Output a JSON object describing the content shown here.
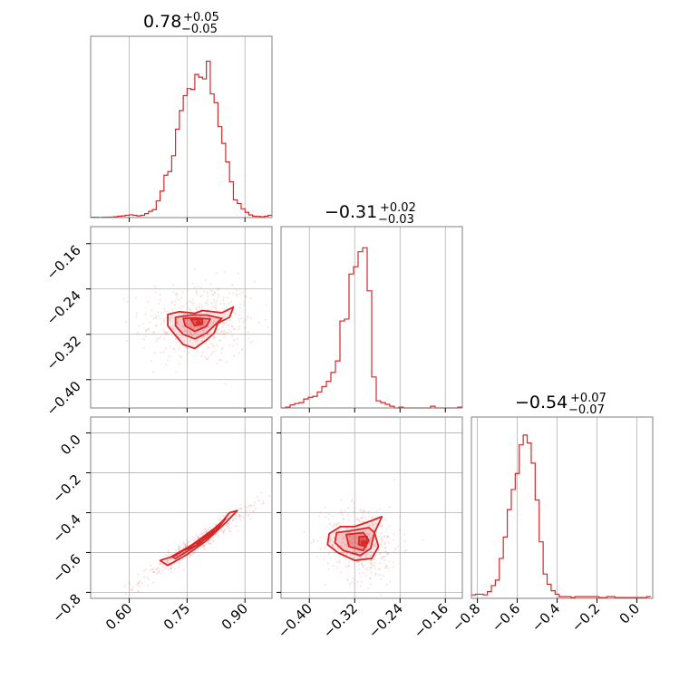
{
  "chart_data": {
    "type": "corner",
    "color": "#d62728",
    "grid": true,
    "titles": [
      {
        "main": "0.78",
        "plus": "+0.05",
        "minus": "−0.05"
      },
      {
        "main": "−0.31",
        "plus": "+0.02",
        "minus": "−0.03"
      },
      {
        "main": "−0.54",
        "plus": "+0.07",
        "minus": "−0.07"
      }
    ],
    "parameters": [
      {
        "range": [
          0.5,
          0.97
        ],
        "ticks": [
          0.6,
          0.75,
          0.9
        ],
        "tick_labels": [
          "0.60",
          "0.75",
          "0.90"
        ]
      },
      {
        "range": [
          -0.45,
          -0.13
        ],
        "ticks": [
          -0.4,
          -0.32,
          -0.24,
          -0.16
        ],
        "tick_labels": [
          "−0.40",
          "−0.32",
          "−0.24",
          "−0.16"
        ]
      },
      {
        "range": [
          -0.83,
          0.08
        ],
        "ticks": [
          -0.8,
          -0.6,
          -0.4,
          -0.2,
          0.0
        ],
        "tick_labels": [
          "−0.8",
          "−0.6",
          "−0.4",
          "−0.2",
          "0.0"
        ]
      }
    ],
    "histograms": [
      {
        "bin_width": 0.01,
        "bins": [
          [
            0.5,
            0.002
          ],
          [
            0.51,
            0.002
          ],
          [
            0.52,
            0.001
          ],
          [
            0.53,
            0.002
          ],
          [
            0.54,
            0.003
          ],
          [
            0.55,
            0.003
          ],
          [
            0.56,
            0.005
          ],
          [
            0.57,
            0.008
          ],
          [
            0.58,
            0.01
          ],
          [
            0.59,
            0.013
          ],
          [
            0.6,
            0.016
          ],
          [
            0.61,
            0.013
          ],
          [
            0.62,
            0.01
          ],
          [
            0.63,
            0.013
          ],
          [
            0.64,
            0.023
          ],
          [
            0.65,
            0.036
          ],
          [
            0.66,
            0.046
          ],
          [
            0.67,
            0.097
          ],
          [
            0.68,
            0.154
          ],
          [
            0.69,
            0.246
          ],
          [
            0.7,
            0.267
          ],
          [
            0.71,
            0.359
          ],
          [
            0.72,
            0.513
          ],
          [
            0.73,
            0.621
          ],
          [
            0.74,
            0.708
          ],
          [
            0.75,
            0.749
          ],
          [
            0.76,
            0.744
          ],
          [
            0.77,
            0.831
          ],
          [
            0.78,
            0.815
          ],
          [
            0.79,
            0.805
          ],
          [
            0.8,
            0.908
          ],
          [
            0.81,
            0.718
          ],
          [
            0.82,
            0.667
          ],
          [
            0.83,
            0.528
          ],
          [
            0.84,
            0.431
          ],
          [
            0.85,
            0.323
          ],
          [
            0.86,
            0.208
          ],
          [
            0.87,
            0.103
          ],
          [
            0.88,
            0.082
          ],
          [
            0.89,
            0.051
          ],
          [
            0.9,
            0.031
          ],
          [
            0.91,
            0.015
          ],
          [
            0.92,
            0.008
          ],
          [
            0.93,
            0.007
          ],
          [
            0.94,
            0.005
          ],
          [
            0.95,
            0.008
          ],
          [
            0.96,
            0.013
          ]
        ]
      },
      {
        "bin_width": 0.008,
        "bins": [
          [
            -0.45,
            0.0
          ],
          [
            -0.442,
            0.005
          ],
          [
            -0.434,
            0.018
          ],
          [
            -0.426,
            0.026
          ],
          [
            -0.418,
            0.031
          ],
          [
            -0.41,
            0.052
          ],
          [
            -0.402,
            0.062
          ],
          [
            -0.394,
            0.067
          ],
          [
            -0.386,
            0.093
          ],
          [
            -0.378,
            0.124
          ],
          [
            -0.37,
            0.155
          ],
          [
            -0.362,
            0.206
          ],
          [
            -0.354,
            0.273
          ],
          [
            -0.346,
            0.505
          ],
          [
            -0.338,
            0.516
          ],
          [
            -0.33,
            0.778
          ],
          [
            -0.322,
            0.82
          ],
          [
            -0.314,
            0.907
          ],
          [
            -0.306,
            0.93
          ],
          [
            -0.298,
            0.68
          ],
          [
            -0.29,
            0.18
          ],
          [
            -0.282,
            0.041
          ],
          [
            -0.274,
            0.031
          ],
          [
            -0.266,
            0.021
          ],
          [
            -0.258,
            0.01
          ],
          [
            -0.25,
            0.0
          ],
          [
            -0.242,
            0.005
          ],
          [
            -0.234,
            0.0
          ],
          [
            -0.226,
            0.0
          ],
          [
            -0.218,
            0.0
          ],
          [
            -0.21,
            0.0
          ],
          [
            -0.202,
            0.0
          ],
          [
            -0.194,
            0.0
          ],
          [
            -0.186,
            0.01
          ],
          [
            -0.178,
            0.0
          ],
          [
            -0.17,
            0.0
          ],
          [
            -0.162,
            0.0
          ],
          [
            -0.154,
            0.0
          ],
          [
            -0.146,
            0.0
          ],
          [
            -0.138,
            0.005
          ]
        ]
      },
      {
        "bin_width": 0.02,
        "bins": [
          [
            -0.83,
            0.02
          ],
          [
            -0.81,
            0.024
          ],
          [
            -0.79,
            0.024
          ],
          [
            -0.77,
            0.02
          ],
          [
            -0.75,
            0.039
          ],
          [
            -0.73,
            0.074
          ],
          [
            -0.71,
            0.106
          ],
          [
            -0.69,
            0.232
          ],
          [
            -0.67,
            0.356
          ],
          [
            -0.65,
            0.515
          ],
          [
            -0.63,
            0.632
          ],
          [
            -0.61,
            0.725
          ],
          [
            -0.59,
            0.891
          ],
          [
            -0.57,
            0.948
          ],
          [
            -0.55,
            0.902
          ],
          [
            -0.53,
            0.785
          ],
          [
            -0.51,
            0.571
          ],
          [
            -0.49,
            0.328
          ],
          [
            -0.47,
            0.141
          ],
          [
            -0.45,
            0.082
          ],
          [
            -0.43,
            0.044
          ],
          [
            -0.41,
            0.024
          ],
          [
            -0.39,
            0.01
          ],
          [
            -0.37,
            0.01
          ],
          [
            -0.35,
            0.01
          ],
          [
            -0.33,
            0.005
          ],
          [
            -0.31,
            0.01
          ],
          [
            -0.29,
            0.01
          ],
          [
            -0.27,
            0.01
          ],
          [
            -0.25,
            0.01
          ],
          [
            -0.23,
            0.01
          ],
          [
            -0.21,
            0.01
          ],
          [
            -0.19,
            0.005
          ],
          [
            -0.17,
            0.005
          ],
          [
            -0.15,
            0.01
          ],
          [
            -0.13,
            0.01
          ],
          [
            -0.11,
            0.005
          ],
          [
            -0.09,
            0.005
          ],
          [
            -0.07,
            0.005
          ],
          [
            -0.05,
            0.005
          ],
          [
            -0.03,
            0.005
          ],
          [
            -0.01,
            0.005
          ],
          [
            0.01,
            0.005
          ],
          [
            0.03,
            0.005
          ],
          [
            0.05,
            0.01
          ]
        ]
      }
    ],
    "pairs": [
      {
        "x_param": 0,
        "y_param": 1,
        "center": [
          0.78,
          -0.3
        ],
        "spread": [
          0.05,
          0.025
        ],
        "rho": 0.0,
        "contours": [
          [
            [
              0.7,
              -0.285
            ],
            [
              0.73,
              -0.28
            ],
            [
              0.77,
              -0.283
            ],
            [
              0.79,
              -0.278
            ],
            [
              0.84,
              -0.282
            ],
            [
              0.87,
              -0.272
            ],
            [
              0.86,
              -0.29
            ],
            [
              0.83,
              -0.3
            ],
            [
              0.82,
              -0.318
            ],
            [
              0.8,
              -0.33
            ],
            [
              0.77,
              -0.345
            ],
            [
              0.74,
              -0.338
            ],
            [
              0.72,
              -0.322
            ],
            [
              0.7,
              -0.305
            ]
          ],
          [
            [
              0.72,
              -0.29
            ],
            [
              0.76,
              -0.286
            ],
            [
              0.8,
              -0.286
            ],
            [
              0.84,
              -0.292
            ],
            [
              0.82,
              -0.305
            ],
            [
              0.8,
              -0.318
            ],
            [
              0.77,
              -0.328
            ],
            [
              0.74,
              -0.32
            ],
            [
              0.72,
              -0.305
            ]
          ],
          [
            [
              0.74,
              -0.292
            ],
            [
              0.77,
              -0.291
            ],
            [
              0.81,
              -0.293
            ],
            [
              0.8,
              -0.306
            ],
            [
              0.77,
              -0.315
            ],
            [
              0.745,
              -0.305
            ]
          ],
          [
            [
              0.76,
              -0.294
            ],
            [
              0.79,
              -0.294
            ],
            [
              0.79,
              -0.302
            ],
            [
              0.77,
              -0.305
            ]
          ]
        ]
      },
      {
        "x_param": 0,
        "y_param": 2,
        "center": [
          0.78,
          -0.55
        ],
        "spread": [
          0.05,
          0.065
        ],
        "rho": 0.97,
        "contours": [
          [
            [
              0.68,
              -0.64
            ],
            [
              0.72,
              -0.615
            ],
            [
              0.78,
              -0.54
            ],
            [
              0.83,
              -0.47
            ],
            [
              0.86,
              -0.4
            ],
            [
              0.88,
              -0.39
            ],
            [
              0.85,
              -0.45
            ],
            [
              0.8,
              -0.54
            ],
            [
              0.75,
              -0.61
            ],
            [
              0.7,
              -0.665
            ]
          ],
          [
            [
              0.71,
              -0.62
            ],
            [
              0.76,
              -0.565
            ],
            [
              0.82,
              -0.48
            ],
            [
              0.85,
              -0.43
            ],
            [
              0.82,
              -0.5
            ],
            [
              0.77,
              -0.57
            ],
            [
              0.72,
              -0.63
            ]
          ],
          [
            [
              0.74,
              -0.59
            ],
            [
              0.79,
              -0.53
            ],
            [
              0.82,
              -0.49
            ],
            [
              0.78,
              -0.56
            ]
          ]
        ]
      },
      {
        "x_param": 1,
        "y_param": 2,
        "center": [
          -0.305,
          -0.55
        ],
        "spread": [
          0.022,
          0.065
        ],
        "rho": -0.1,
        "contours": [
          [
            [
              -0.365,
              -0.505
            ],
            [
              -0.345,
              -0.47
            ],
            [
              -0.32,
              -0.47
            ],
            [
              -0.295,
              -0.445
            ],
            [
              -0.272,
              -0.42
            ],
            [
              -0.285,
              -0.5
            ],
            [
              -0.278,
              -0.57
            ],
            [
              -0.29,
              -0.63
            ],
            [
              -0.32,
              -0.64
            ],
            [
              -0.35,
              -0.6
            ],
            [
              -0.368,
              -0.56
            ]
          ],
          [
            [
              -0.352,
              -0.5
            ],
            [
              -0.325,
              -0.49
            ],
            [
              -0.295,
              -0.475
            ],
            [
              -0.285,
              -0.5
            ],
            [
              -0.292,
              -0.58
            ],
            [
              -0.31,
              -0.615
            ],
            [
              -0.34,
              -0.59
            ],
            [
              -0.355,
              -0.55
            ]
          ],
          [
            [
              -0.335,
              -0.51
            ],
            [
              -0.305,
              -0.5
            ],
            [
              -0.295,
              -0.54
            ],
            [
              -0.305,
              -0.59
            ],
            [
              -0.33,
              -0.57
            ]
          ],
          [
            [
              -0.312,
              -0.52
            ],
            [
              -0.298,
              -0.52
            ],
            [
              -0.3,
              -0.57
            ],
            [
              -0.313,
              -0.56
            ]
          ]
        ]
      }
    ]
  }
}
